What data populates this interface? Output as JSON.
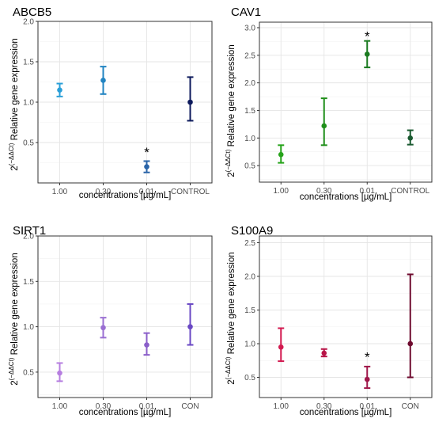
{
  "chart_data": [
    {
      "type": "scatter",
      "title": "ABCB5",
      "xlabel": "concentrations [µg/mL]",
      "ylabel": "Relative gene expression",
      "ylabel_prefix": "2",
      "ylabel_superscript": "(−ΔΔCt)",
      "categories": [
        "1.00",
        "0.30",
        "0.01",
        "CONTROL"
      ],
      "ylim": [
        0,
        2.0
      ],
      "yticks": [
        "0.5",
        "1.0",
        "1.5",
        "2.0"
      ],
      "grid": true,
      "series": [
        {
          "values": [
            1.15,
            1.27,
            0.2,
            1.0
          ],
          "lower": [
            1.07,
            1.1,
            0.13,
            0.77
          ],
          "upper": [
            1.23,
            1.44,
            0.27,
            1.31
          ],
          "colors": [
            "#2a9fd8",
            "#2184c2",
            "#2a64a8",
            "#0d1a5c"
          ]
        }
      ],
      "annotations": [
        {
          "category": "0.01",
          "text": "*",
          "y": 0.4
        }
      ]
    },
    {
      "type": "scatter",
      "title": "CAV1",
      "xlabel": "concentrations [µg/mL]",
      "ylabel": "Relative gene expression",
      "ylabel_prefix": "2",
      "ylabel_superscript": "(−ΔΔCt)",
      "categories": [
        "1.00",
        "0.30",
        "0.01",
        "CONTROL"
      ],
      "ylim": [
        0.2,
        3.1
      ],
      "yticks": [
        "0.5",
        "1.0",
        "1.5",
        "2.0",
        "2.5",
        "3.0"
      ],
      "grid": true,
      "series": [
        {
          "values": [
            0.7,
            1.22,
            2.52,
            1.0
          ],
          "lower": [
            0.55,
            0.87,
            2.28,
            0.88
          ],
          "upper": [
            0.87,
            1.72,
            2.76,
            1.14
          ],
          "colors": [
            "#26a31a",
            "#1f8f1a",
            "#1b7a20",
            "#1a5a30"
          ]
        }
      ],
      "annotations": [
        {
          "category": "0.01",
          "text": "*",
          "y": 2.88
        }
      ]
    },
    {
      "type": "scatter",
      "title": "SIRT1",
      "xlabel": "concentrations [µg/mL]",
      "ylabel": "Relative gene expression",
      "ylabel_prefix": "2",
      "ylabel_superscript": "(−ΔΔCt)",
      "categories": [
        "1.00",
        "0.30",
        "0.01",
        "CON"
      ],
      "ylim": [
        0.22,
        2.0
      ],
      "yticks": [
        "0.5",
        "1.0",
        "1.5",
        "2.0"
      ],
      "grid": true,
      "series": [
        {
          "values": [
            0.49,
            0.99,
            0.8,
            1.0
          ],
          "lower": [
            0.4,
            0.88,
            0.69,
            0.8
          ],
          "upper": [
            0.6,
            1.1,
            0.93,
            1.25
          ],
          "colors": [
            "#b67ee0",
            "#9a6fd2",
            "#8a5ec9",
            "#6a48c4"
          ]
        }
      ],
      "annotations": []
    },
    {
      "type": "scatter",
      "title": "S100A9",
      "xlabel": "concentrations [µg/mL]",
      "ylabel": "Relative gene expression",
      "ylabel_prefix": "2",
      "ylabel_superscript": "(−ΔΔCt)",
      "categories": [
        "1.00",
        "0.30",
        "0.01",
        "CON"
      ],
      "ylim": [
        0.2,
        2.6
      ],
      "yticks": [
        "0.5",
        "1.0",
        "1.5",
        "2.0",
        "2.5"
      ],
      "grid": true,
      "series": [
        {
          "values": [
            0.95,
            0.86,
            0.47,
            1.0
          ],
          "lower": [
            0.74,
            0.81,
            0.34,
            0.5
          ],
          "upper": [
            1.23,
            0.92,
            0.66,
            2.03
          ],
          "colors": [
            "#d21a50",
            "#b81548",
            "#a0184a",
            "#6e0a2e"
          ]
        }
      ],
      "annotations": [
        {
          "category": "0.01",
          "text": "*",
          "y": 0.83
        }
      ]
    }
  ]
}
